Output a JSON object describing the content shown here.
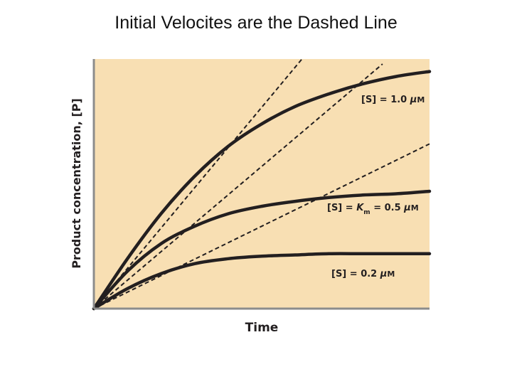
{
  "slide": {
    "title": "Initial Velocites are the Dashed Line"
  },
  "chart_data": {
    "type": "line",
    "xlabel": "Time",
    "ylabel": "Product concentration, [P]",
    "colors": {
      "plot_background": "#f8dfb3",
      "curve": "#231f20",
      "axis": "#8c8c8c"
    },
    "grid": false,
    "series": [
      {
        "name": "[S] = 1.0 μM",
        "label_parts": [
          "[S] = 1.0 ",
          "μ",
          "M"
        ],
        "style": "solid",
        "x": [
          0,
          0.1,
          0.2,
          0.3,
          0.4,
          0.5,
          0.6,
          0.7,
          0.8,
          0.9,
          1.0
        ],
        "y": [
          0,
          0.2,
          0.38,
          0.53,
          0.65,
          0.74,
          0.81,
          0.86,
          0.9,
          0.93,
          0.95
        ]
      },
      {
        "name": "[S] = K_m = 0.5 μM",
        "label_parts": [
          "[S] = ",
          "K",
          "m",
          " = 0.5 ",
          "μ",
          "M"
        ],
        "style": "solid",
        "x": [
          0,
          0.1,
          0.2,
          0.3,
          0.4,
          0.5,
          0.6,
          0.7,
          0.8,
          0.9,
          1.0
        ],
        "y": [
          0,
          0.15,
          0.26,
          0.33,
          0.38,
          0.41,
          0.43,
          0.445,
          0.455,
          0.46,
          0.47
        ]
      },
      {
        "name": "[S] = 0.2 μM",
        "label_parts": [
          "[S] = 0.2 ",
          "μ",
          "M"
        ],
        "style": "solid",
        "x": [
          0,
          0.1,
          0.2,
          0.3,
          0.4,
          0.5,
          0.6,
          0.7,
          0.8,
          0.9,
          1.0
        ],
        "y": [
          0,
          0.08,
          0.14,
          0.18,
          0.2,
          0.21,
          0.215,
          0.22,
          0.22,
          0.22,
          0.22
        ]
      }
    ],
    "initial_velocity_lines": [
      {
        "style": "dashed",
        "x": [
          0,
          0.62
        ],
        "y": [
          0,
          1.0
        ]
      },
      {
        "style": "dashed",
        "x": [
          0,
          0.86
        ],
        "y": [
          0,
          0.98
        ]
      },
      {
        "style": "dashed",
        "x": [
          0,
          1.0
        ],
        "y": [
          0,
          0.66
        ]
      }
    ],
    "xlim": [
      0,
      1
    ],
    "ylim": [
      0,
      1
    ]
  }
}
